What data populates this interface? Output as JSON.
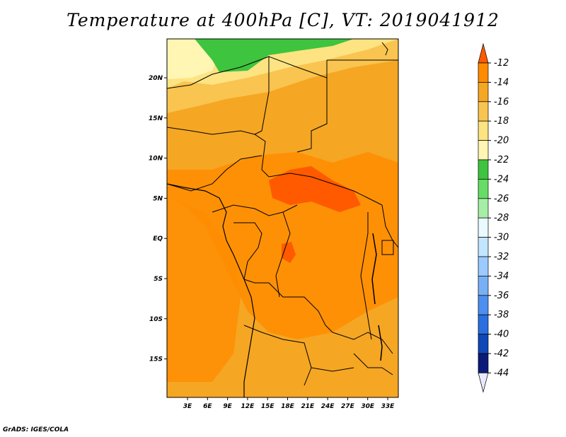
{
  "title": "Temperature at 400hPa [C], VT: 2019041912",
  "credit": "GrADS: IGES/COLA",
  "map": {
    "region": "Central Africa",
    "lon_labels": [
      "3E",
      "6E",
      "9E",
      "12E",
      "15E",
      "18E",
      "21E",
      "24E",
      "27E",
      "30E",
      "33E"
    ],
    "lat_labels": [
      "20N",
      "15N",
      "10N",
      "5N",
      "EQ",
      "5S",
      "10S",
      "15S"
    ]
  },
  "colorbar": {
    "labels": [
      "-12",
      "-14",
      "-16",
      "-18",
      "-20",
      "-22",
      "-24",
      "-26",
      "-28",
      "-30",
      "-32",
      "-34",
      "-36",
      "-38",
      "-40",
      "-42",
      "-44"
    ],
    "colors": [
      "#ff5a00",
      "#ff8c00",
      "#f5a623",
      "#f9c44f",
      "#fde382",
      "#fff6b3",
      "#3ec43e",
      "#66dd66",
      "#a6eea6",
      "#e9fbff",
      "#c3e6ff",
      "#9ccaff",
      "#79b0f5",
      "#4d8ff0",
      "#2a6ee0",
      "#0f46b8",
      "#0a1a78",
      "#e8e8ff"
    ]
  }
}
